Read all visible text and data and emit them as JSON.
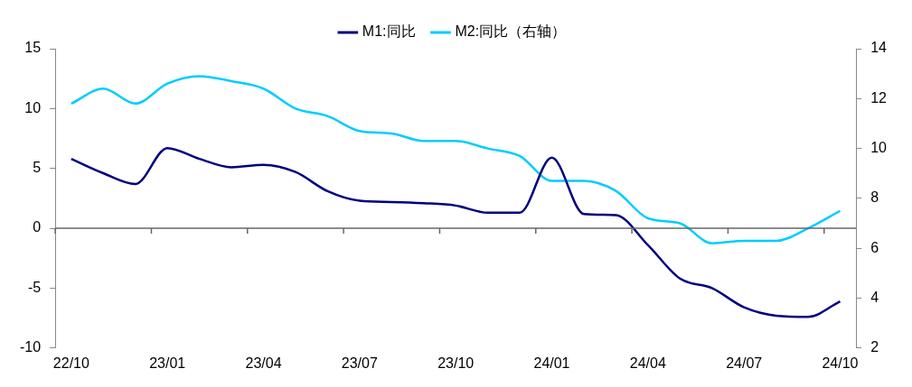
{
  "chart_data": {
    "type": "line",
    "categories": [
      "22/10",
      null,
      null,
      "23/01",
      null,
      null,
      "23/04",
      null,
      null,
      "23/07",
      null,
      null,
      "23/10",
      null,
      null,
      "24/01",
      null,
      null,
      "24/04",
      null,
      null,
      "24/07",
      null,
      null,
      "24/10"
    ],
    "series": [
      {
        "name": "M1:同比",
        "color": "#000080",
        "values": [
          5.8,
          4.6,
          3.7,
          6.7,
          5.8,
          5.1,
          5.3,
          4.7,
          3.1,
          2.3,
          2.2,
          2.1,
          1.9,
          1.3,
          1.3,
          5.9,
          1.2,
          1.1,
          -1.4,
          -4.2,
          -5.0,
          -6.6,
          -7.3,
          -7.4,
          -6.1
        ]
      },
      {
        "name": "M2:同比（右轴）",
        "color": "#00ccff",
        "axis": "y2",
        "values": [
          11.8,
          12.4,
          11.8,
          12.6,
          12.9,
          12.7,
          12.4,
          11.6,
          11.3,
          10.7,
          10.6,
          10.3,
          10.3,
          10.0,
          9.7,
          8.7,
          8.7,
          8.3,
          7.2,
          7.0,
          6.2,
          6.3,
          6.3,
          6.8,
          7.5
        ]
      }
    ],
    "ylim": [
      -10,
      15
    ],
    "yticks": [
      -10,
      -5,
      0,
      5,
      10,
      15
    ],
    "y2lim": [
      2,
      14
    ],
    "y2ticks": [
      2,
      4,
      6,
      8,
      10,
      12,
      14
    ],
    "ref_lines": [
      {
        "axis": "y",
        "value": 0,
        "color": "#666666"
      }
    ],
    "grid": false,
    "legend": "top",
    "marker": "none",
    "line_style": "solid"
  }
}
